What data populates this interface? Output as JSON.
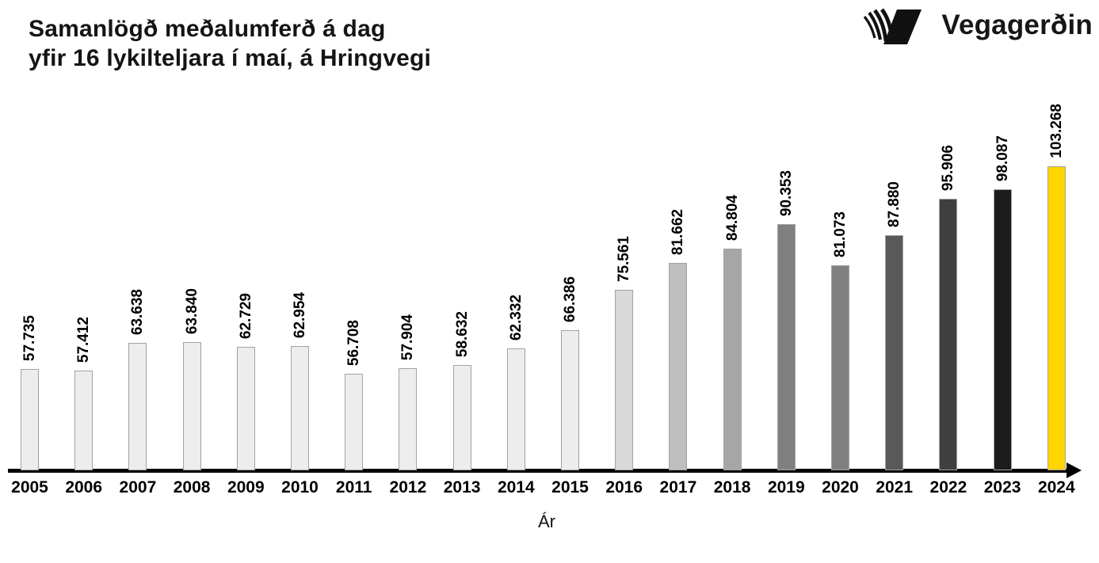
{
  "header": {
    "title_line1": "Samanlögð meðalumferð á dag",
    "title_line2": "yfir 16 lykilteljara í maí, á Hringvegi",
    "logo_text": "Vegagerðin"
  },
  "chart_data": {
    "type": "bar",
    "title": "Samanlögð meðalumferð á dag yfir 16 lykilteljara í maí, á Hringvegi",
    "xlabel": "Ár",
    "ylabel": "",
    "categories": [
      "2005",
      "2006",
      "2007",
      "2008",
      "2009",
      "2010",
      "2011",
      "2012",
      "2013",
      "2014",
      "2015",
      "2016",
      "2017",
      "2018",
      "2019",
      "2020",
      "2021",
      "2022",
      "2023",
      "2024"
    ],
    "values": [
      57735,
      57412,
      63638,
      63840,
      62729,
      62954,
      56708,
      57904,
      58632,
      62332,
      66386,
      75561,
      81662,
      84804,
      90353,
      81073,
      87880,
      95906,
      98087,
      103268
    ],
    "value_labels": [
      "57.735",
      "57.412",
      "63.638",
      "63.840",
      "62.729",
      "62.954",
      "56.708",
      "57.904",
      "58.632",
      "62.332",
      "66.386",
      "75.561",
      "81.662",
      "84.804",
      "90.353",
      "81.073",
      "87.880",
      "95.906",
      "98.087",
      "103.268"
    ],
    "bar_colors": [
      "#EDEDED",
      "#EDEDED",
      "#EDEDED",
      "#EDEDED",
      "#EDEDED",
      "#EDEDED",
      "#EDEDED",
      "#EDEDED",
      "#EDEDED",
      "#EDEDED",
      "#EDEDED",
      "#D9D9D9",
      "#BFBFBF",
      "#A6A6A6",
      "#808080",
      "#808080",
      "#595959",
      "#3F3F3F",
      "#1C1C1C",
      "#FFD500"
    ],
    "bar_border_color": "#A2A2A2",
    "highlight_year": "2024",
    "highlight_color": "#FFD500",
    "axis_color": "#000000",
    "ylim": [
      35000,
      103268
    ],
    "grid": false,
    "legend": false,
    "data_label_style": "rotated 90° above each bar, bold, thousands separated by period"
  }
}
